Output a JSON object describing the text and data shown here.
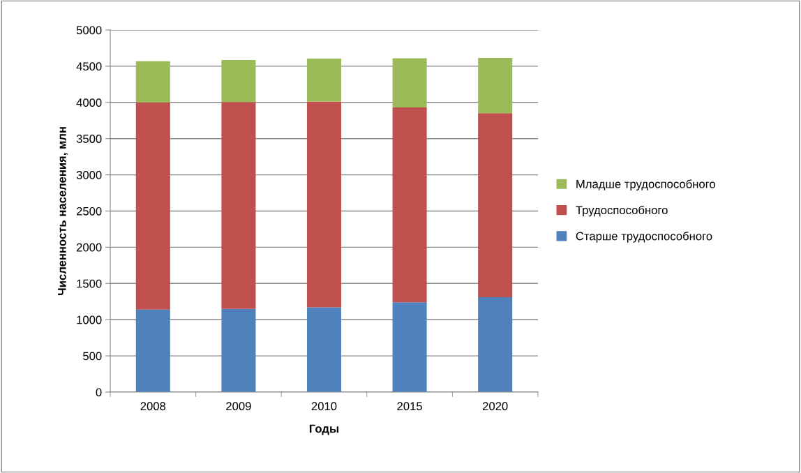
{
  "chart_data": {
    "type": "bar",
    "stacked": true,
    "xlabel": "Годы",
    "ylabel": "Численность населения, млн",
    "categories": [
      "2008",
      "2009",
      "2010",
      "2015",
      "2020"
    ],
    "series": [
      {
        "name": "Старше трудоспособного",
        "color": "#4f81bd",
        "values": [
          1140,
          1150,
          1170,
          1240,
          1310
        ]
      },
      {
        "name": "Трудоспособного",
        "color": "#c0504d",
        "values": [
          2860,
          2855,
          2840,
          2690,
          2540
        ]
      },
      {
        "name": "Младше трудоспособного",
        "color": "#9bbb59",
        "values": [
          570,
          580,
          595,
          680,
          765
        ]
      }
    ],
    "ylim": [
      0,
      5000
    ],
    "yticks": [
      0,
      500,
      1000,
      1500,
      2000,
      2500,
      3000,
      3500,
      4000,
      4500,
      5000
    ],
    "grid": "y",
    "legend": "right"
  }
}
